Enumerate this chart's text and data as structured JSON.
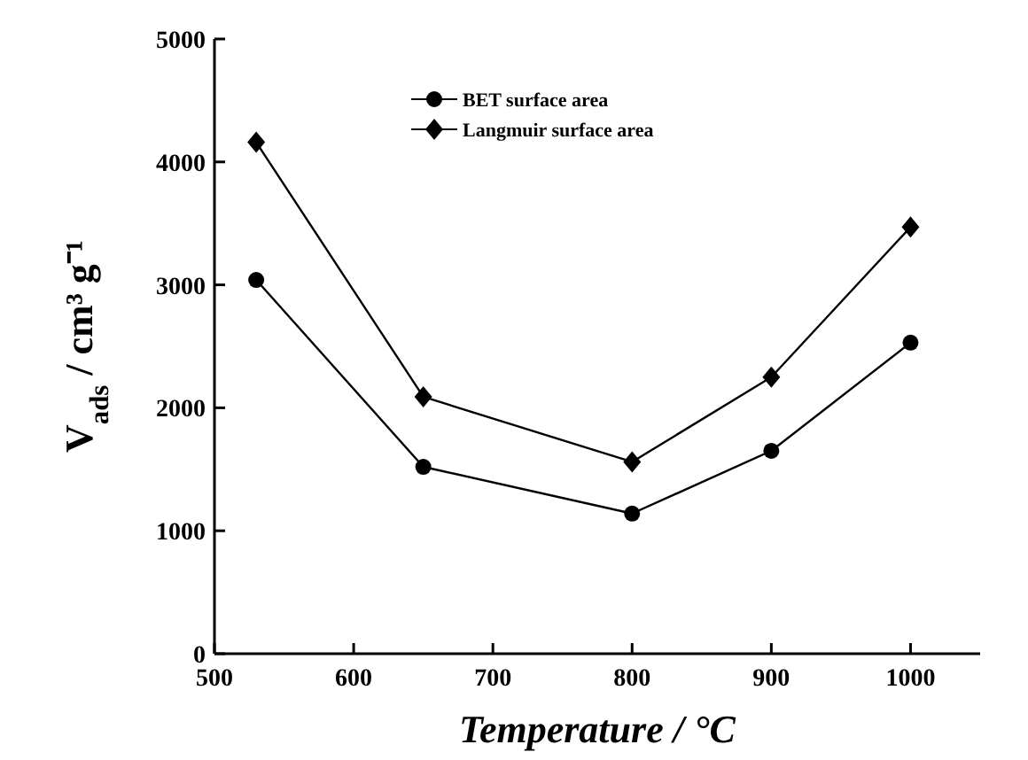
{
  "chart_data": {
    "type": "line",
    "xlabel": "Temperature / °C",
    "ylabel": "V$_{ads}$ / cm³ g⁻¹",
    "x": [
      530,
      650,
      800,
      900,
      1000
    ],
    "series": [
      {
        "name": "BET surface area",
        "color": "#000000",
        "marker": "circle",
        "values": [
          3040,
          1520,
          1140,
          1650,
          2530
        ]
      },
      {
        "name": "Langmuir surface area",
        "color": "#000000",
        "marker": "diamond",
        "values": [
          4160,
          2090,
          1560,
          2250,
          3470
        ]
      }
    ],
    "xlim": [
      500,
      1050
    ],
    "xticks": [
      500,
      600,
      700,
      800,
      900,
      1000
    ],
    "ylim": [
      0,
      5000
    ],
    "yticks": [
      0,
      1000,
      2000,
      3000,
      4000,
      5000
    ],
    "legend": "top",
    "line_style": "solid",
    "grid": false
  }
}
